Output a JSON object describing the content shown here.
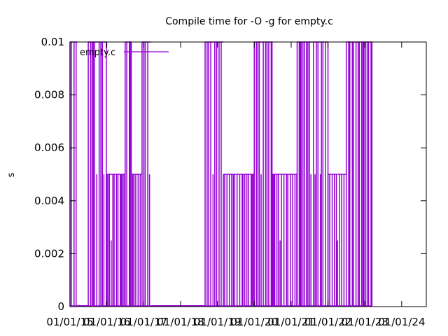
{
  "chart_data": {
    "type": "line",
    "title": "Compile time for -O -g for empty.c",
    "xlabel": "",
    "ylabel": "s",
    "ylim": [
      0,
      0.01
    ],
    "y_ticks": [
      "0",
      "0.002",
      "0.004",
      "0.006",
      "0.008",
      "0.01"
    ],
    "x_ticks": [
      "01/01/15",
      "01/01/16",
      "01/01/17",
      "01/01/18",
      "01/01/19",
      "01/01/20",
      "01/01/21",
      "01/01/22",
      "01/01/23",
      "01/01/24"
    ],
    "xlim": [
      "2015-01-01",
      "2024-09-01"
    ],
    "grid": false,
    "legend": "top-left",
    "series": [
      {
        "name": "empty.c",
        "color": "#9400d3",
        "segments": [
          {
            "from": "2015-01-01",
            "to": "2015-03-15",
            "level": 0.01
          },
          {
            "from": "2015-03-15",
            "to": "2015-07-01",
            "level": 0.0
          },
          {
            "from": "2015-07-01",
            "to": "2016-01-01",
            "level": 0.01
          },
          {
            "from": "2016-01-01",
            "to": "2016-07-01",
            "level": 0.005
          },
          {
            "from": "2016-07-01",
            "to": "2016-09-01",
            "level": 0.01
          },
          {
            "from": "2016-09-01",
            "to": "2016-12-15",
            "level": 0.005
          },
          {
            "from": "2016-12-15",
            "to": "2017-03-15",
            "level": 0.01
          },
          {
            "from": "2017-03-15",
            "to": "2018-09-01",
            "level": 0.0
          },
          {
            "from": "2018-09-01",
            "to": "2019-03-01",
            "level": 0.01
          },
          {
            "from": "2019-03-01",
            "to": "2020-01-01",
            "level": 0.005
          },
          {
            "from": "2020-01-01",
            "to": "2020-07-01",
            "level": 0.01
          },
          {
            "from": "2020-07-01",
            "to": "2021-03-01",
            "level": 0.005
          },
          {
            "from": "2021-03-01",
            "to": "2022-01-01",
            "level": 0.01
          },
          {
            "from": "2022-01-01",
            "to": "2022-07-01",
            "level": 0.005
          },
          {
            "from": "2022-07-01",
            "to": "2023-03-15",
            "level": 0.01
          }
        ]
      }
    ]
  }
}
